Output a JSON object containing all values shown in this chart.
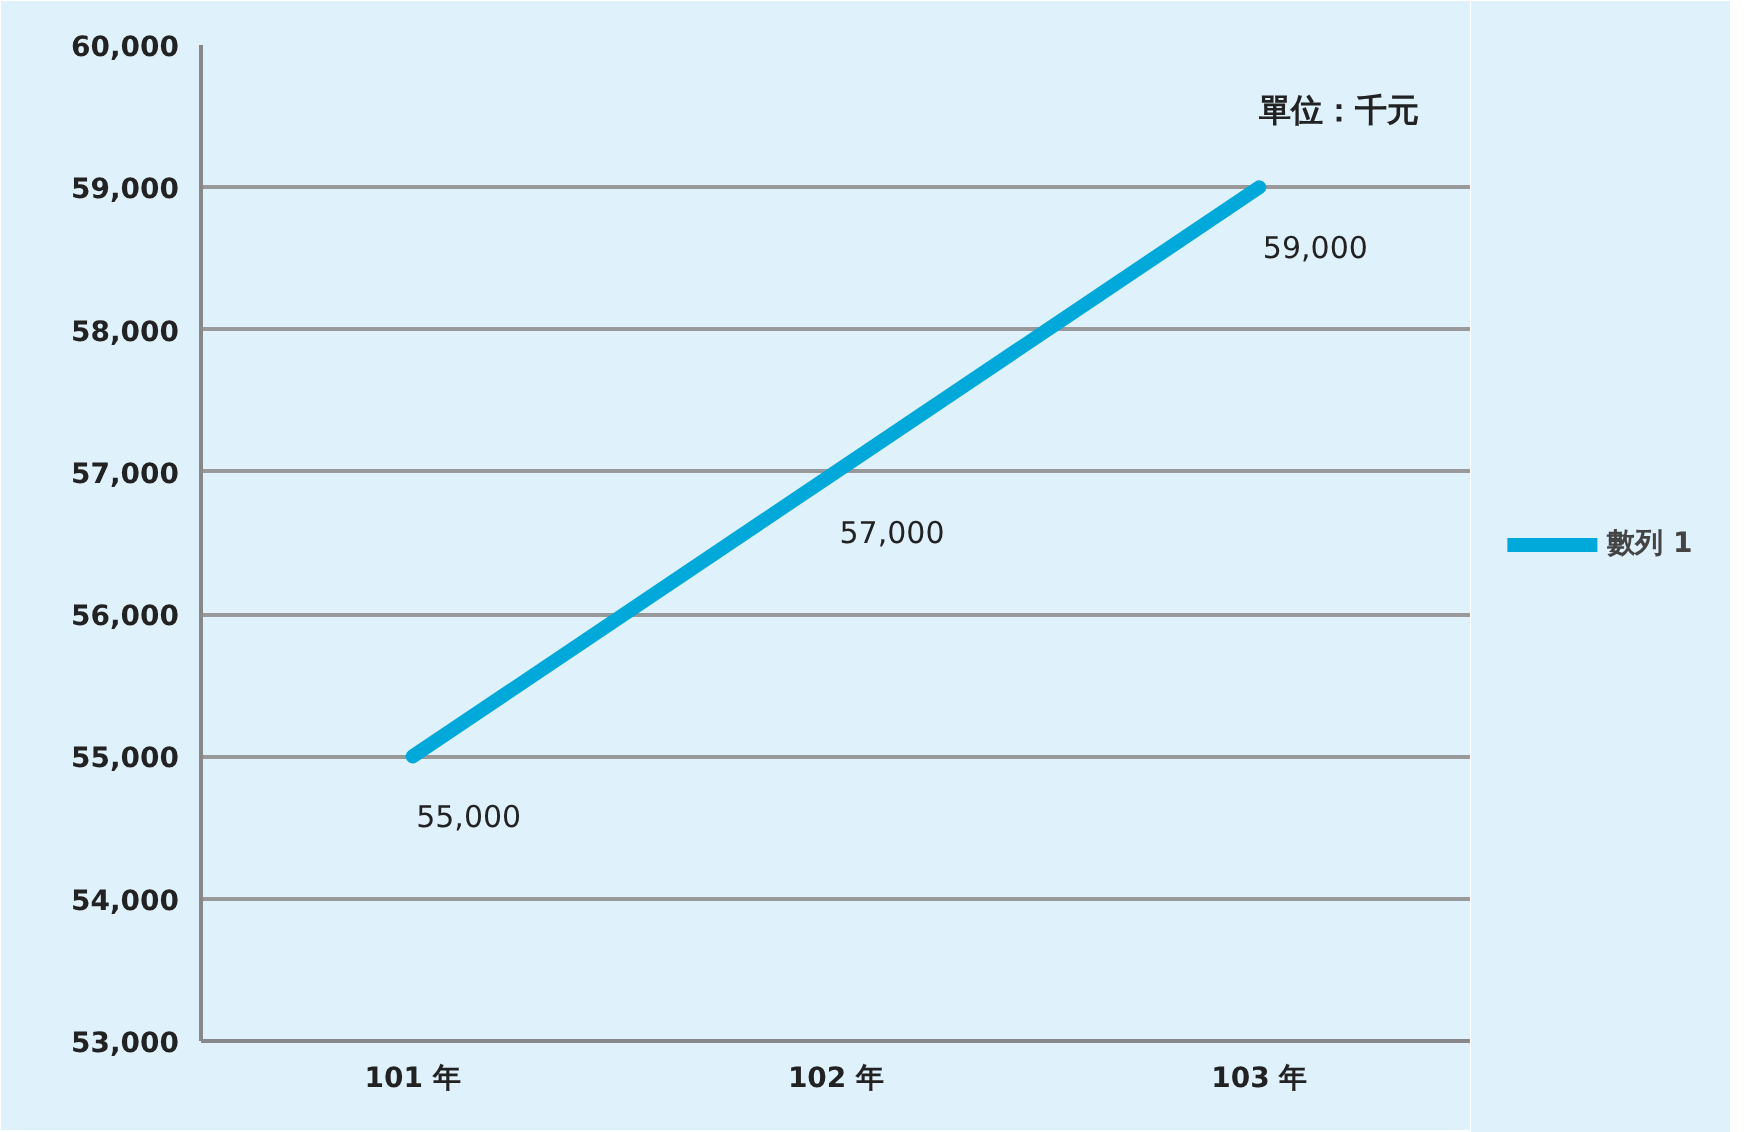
{
  "chart_data": {
    "type": "line",
    "categories": [
      "101 年",
      "102 年",
      "103 年"
    ],
    "series": [
      {
        "name": "數列 1",
        "color": "#00a9d9",
        "values": [
          55000,
          57000,
          59000
        ],
        "value_labels": [
          "55,000",
          "57,000",
          "59,000"
        ]
      }
    ],
    "ylim": [
      53000,
      60000
    ],
    "yticks": [
      {
        "value": 53000,
        "label": "53,000"
      },
      {
        "value": 54000,
        "label": "54,000"
      },
      {
        "value": 55000,
        "label": "55,000"
      },
      {
        "value": 56000,
        "label": "56,000"
      },
      {
        "value": 57000,
        "label": "57,000"
      },
      {
        "value": 58000,
        "label": "58,000"
      },
      {
        "value": 59000,
        "label": "59,000"
      },
      {
        "value": 60000,
        "label": "60,000"
      }
    ],
    "grid": "y",
    "legend": "right",
    "marker": "none",
    "line_style": "solid",
    "annotations": [
      "單位：千元"
    ]
  }
}
